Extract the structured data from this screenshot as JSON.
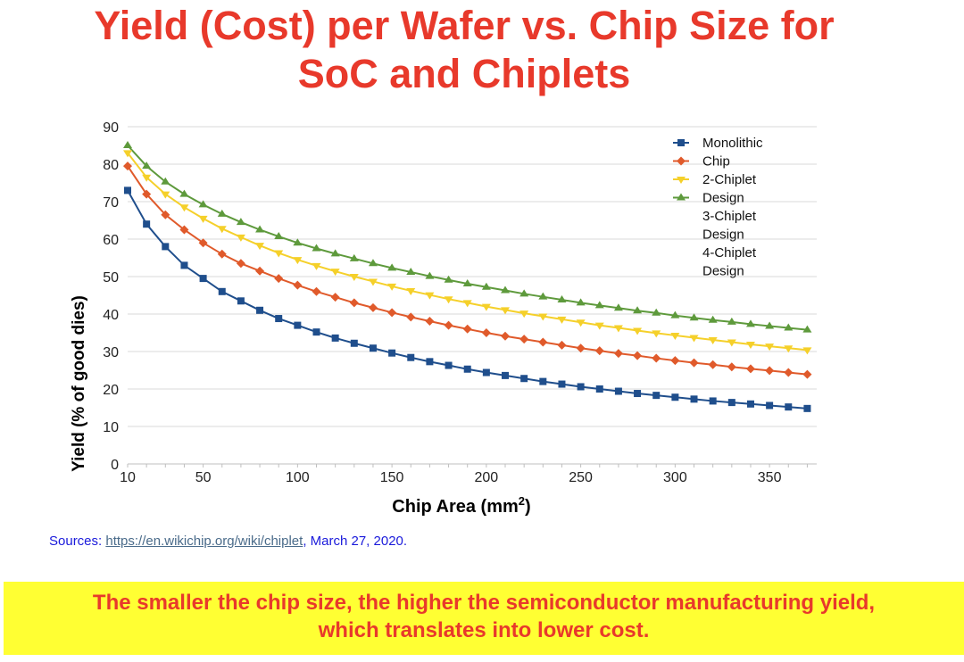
{
  "page": {
    "title_line1": "Yield (Cost) per Wafer vs. Chip Size for",
    "title_line2": "SoC and Chiplets",
    "sources_prefix": "Sources: ",
    "sources_link": "https://en.wikichip.org/wiki/chiplet",
    "sources_suffix": ", March 27, 2020.",
    "banner_line1": "The smaller the chip size, the higher the semiconductor manufacturing yield,",
    "banner_line2": "which translates into lower cost."
  },
  "chart_data": {
    "type": "line",
    "title": "",
    "xlabel": "Chip Area (mm",
    "xlabel_sup": "2",
    "xlabel_suffix": ")",
    "ylabel": "Yield (% of good dies)",
    "xlim": [
      10,
      375
    ],
    "ylim": [
      0,
      90
    ],
    "x_ticks": [
      10,
      50,
      100,
      150,
      200,
      250,
      300,
      350
    ],
    "y_ticks": [
      0,
      10,
      20,
      30,
      40,
      50,
      60,
      70,
      80,
      90
    ],
    "x": [
      10,
      20,
      30,
      40,
      50,
      60,
      70,
      80,
      90,
      100,
      110,
      120,
      130,
      140,
      150,
      160,
      170,
      180,
      190,
      200,
      210,
      220,
      230,
      240,
      250,
      260,
      270,
      280,
      290,
      300,
      310,
      320,
      330,
      340,
      350,
      360,
      370
    ],
    "legend_entries": [
      "Monolithic",
      "Chip",
      "2-Chiplet",
      "Design",
      "3-Chiplet",
      "Design",
      "4-Chiplet",
      "Design"
    ],
    "legend_position": "top-right",
    "series": [
      {
        "name": "Monolithic Chip",
        "color": "#1f4e8c",
        "marker": "square",
        "values": [
          73,
          64,
          58,
          53,
          49.5,
          46,
          43.5,
          41,
          38.8,
          37,
          35.2,
          33.6,
          32.2,
          30.9,
          29.6,
          28.4,
          27.3,
          26.3,
          25.3,
          24.4,
          23.6,
          22.8,
          22,
          21.3,
          20.6,
          20,
          19.4,
          18.8,
          18.3,
          17.8,
          17.3,
          16.8,
          16.4,
          16,
          15.6,
          15.2,
          14.8
        ]
      },
      {
        "name": "2-Chiplet Design",
        "color": "#e05a2b",
        "marker": "diamond",
        "values": [
          79.5,
          72,
          66.5,
          62.5,
          59,
          56,
          53.5,
          51.5,
          49.5,
          47.7,
          46,
          44.5,
          43,
          41.7,
          40.4,
          39.2,
          38.1,
          37,
          36,
          35,
          34.1,
          33.3,
          32.5,
          31.7,
          30.9,
          30.2,
          29.5,
          28.9,
          28.2,
          27.6,
          27,
          26.5,
          25.9,
          25.4,
          24.9,
          24.4,
          23.9
        ]
      },
      {
        "name": "3-Chiplet Design",
        "color": "#f5d02a",
        "marker": "triangle-down",
        "values": [
          83,
          76.5,
          72,
          68.5,
          65.5,
          62.8,
          60.5,
          58.3,
          56.3,
          54.5,
          52.9,
          51.4,
          50,
          48.7,
          47.4,
          46.2,
          45.1,
          44,
          43,
          42,
          41.1,
          40.2,
          39.4,
          38.6,
          37.8,
          37,
          36.3,
          35.6,
          34.9,
          34.3,
          33.7,
          33.1,
          32.5,
          31.9,
          31.4,
          30.9,
          30.4
        ]
      },
      {
        "name": "4-Chiplet Design",
        "color": "#5e9a3c",
        "marker": "triangle-up",
        "values": [
          85,
          79.5,
          75.3,
          72,
          69.2,
          66.7,
          64.5,
          62.5,
          60.7,
          59,
          57.5,
          56.1,
          54.8,
          53.5,
          52.3,
          51.2,
          50.1,
          49.1,
          48.1,
          47.2,
          46.3,
          45.4,
          44.6,
          43.8,
          43,
          42.3,
          41.6,
          40.9,
          40.3,
          39.6,
          39,
          38.4,
          37.9,
          37.3,
          36.8,
          36.3,
          35.8
        ]
      }
    ]
  }
}
